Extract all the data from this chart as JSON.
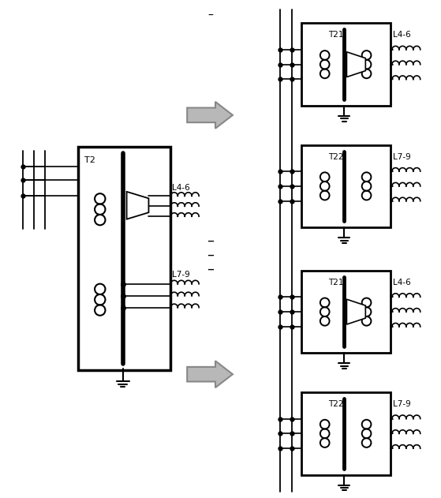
{
  "bg_color": "#ffffff",
  "line_color": "#000000",
  "fig_width": 5.59,
  "fig_height": 6.31,
  "labels": {
    "T2": "T2",
    "T21": "T21",
    "T22": "T22",
    "L4_6": "L4-6",
    "L7_9": "L7-9"
  }
}
